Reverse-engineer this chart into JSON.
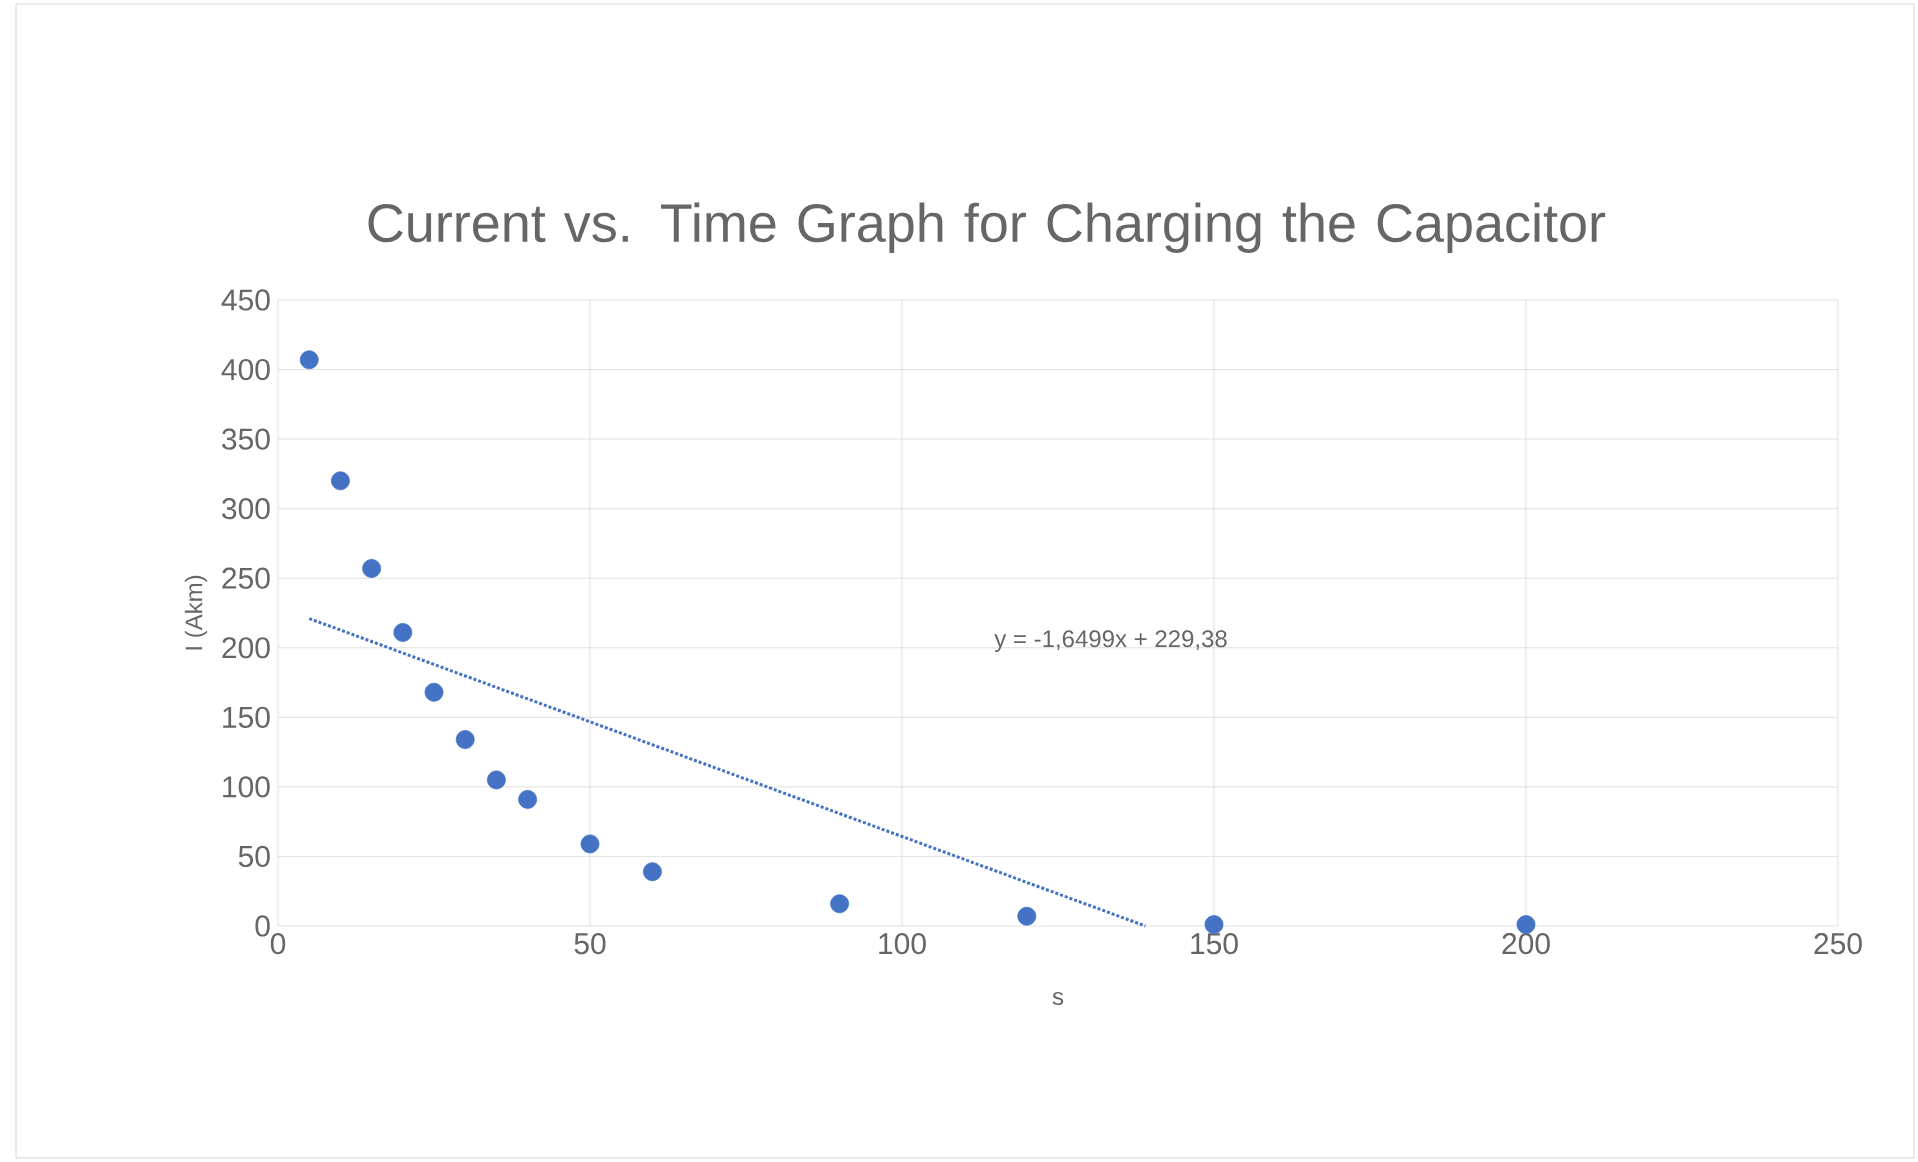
{
  "chart_data": {
    "type": "scatter",
    "title": "Current vs. Time Graph for Charging the Capacitor",
    "xlabel": "s",
    "ylabel": "I (Akm)",
    "series": [
      {
        "type": "scatter",
        "color": "#4472c4",
        "marker": "circle",
        "x": [
          5,
          10,
          15,
          20,
          25,
          30,
          35,
          40,
          50,
          60,
          90,
          120,
          150,
          200
        ],
        "values": [
          407,
          320,
          257,
          211,
          168,
          134,
          105,
          91,
          59,
          39,
          16,
          7,
          1,
          1
        ]
      },
      {
        "type": "line",
        "color": "#4472c4",
        "line_style": "dotted",
        "marker": "none",
        "x": [
          5,
          139
        ],
        "values": [
          221,
          0
        ]
      }
    ],
    "annotations": [
      "y = -1,6499x + 229,38"
    ],
    "xlim": [
      0,
      250
    ],
    "xticks": [
      0,
      50,
      100,
      150,
      200,
      250
    ],
    "ylim": [
      0,
      450
    ],
    "yticks": [
      0,
      50,
      100,
      150,
      200,
      250,
      300,
      350,
      400,
      450
    ],
    "grid": true
  }
}
